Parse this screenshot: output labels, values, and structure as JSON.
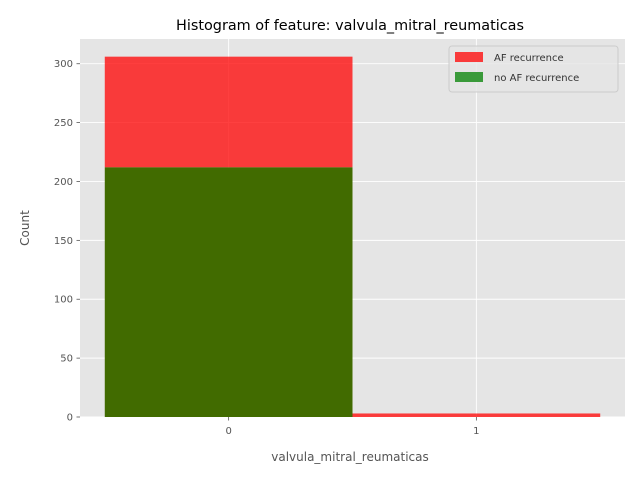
{
  "chart_data": {
    "type": "bar",
    "title": "Histogram of feature: valvula_mitral_reumaticas",
    "xlabel": "valvula_mitral_reumaticas",
    "ylabel": "Count",
    "categories": [
      "0",
      "1"
    ],
    "ylim": [
      0,
      321
    ],
    "yticks": [
      0,
      50,
      100,
      150,
      200,
      250,
      300
    ],
    "series": [
      {
        "name": "AF recurrence",
        "values": [
          306,
          3
        ],
        "color": "#ff0000"
      },
      {
        "name": "no AF recurrence",
        "values": [
          212,
          0
        ],
        "color": "#008000"
      }
    ],
    "overlap_color": "#416b00",
    "background_color": "#e5e5e5",
    "grid": true,
    "legend_position": "top-right"
  }
}
